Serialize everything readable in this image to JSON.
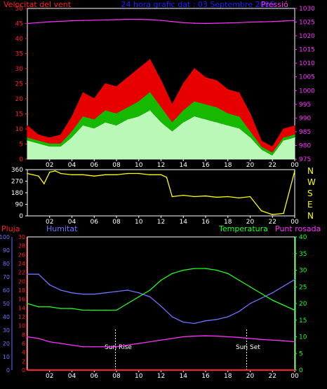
{
  "header": {
    "left_title": "Velocitat del vent",
    "center_title": "24 hora grafic dat : 03 Septembre 2015",
    "right_title": "Pressió",
    "left_color": "#ff2020",
    "center_color": "#2020ff",
    "right_color": "#ff30ff"
  },
  "direction_labels": [
    "N",
    "W",
    "S",
    "E",
    "N"
  ],
  "lower_header": {
    "rain_label": "Pluja",
    "humidity_label": "Humitat",
    "temp_label": "Temperatura",
    "dew_label": "Punt rosada",
    "rain_color": "#ff2020",
    "humidity_color": "#7070ff",
    "temp_color": "#20ff20",
    "dew_color": "#ff30ff"
  },
  "annotations": {
    "sunrise": "Sun Rise",
    "sunset": "Sun Set"
  },
  "chart_data": [
    {
      "type": "line",
      "name": "wind-speed-pressure",
      "x_ticks": [
        "02",
        "04",
        "06",
        "08",
        "10",
        "12",
        "14",
        "16",
        "18",
        "20",
        "22",
        "00"
      ],
      "left_axis": {
        "ylim": [
          0,
          50
        ],
        "ticks": [
          0,
          5,
          10,
          15,
          20,
          25,
          30,
          35,
          40,
          45,
          50
        ],
        "color": "#ff2020"
      },
      "right_axis": {
        "ylim": [
          975,
          1030
        ],
        "ticks": [
          975,
          980,
          985,
          990,
          995,
          1000,
          1005,
          1010,
          1015,
          1020,
          1025,
          1030
        ],
        "color": "#ff30ff"
      },
      "x": [
        0,
        1,
        2,
        3,
        4,
        5,
        6,
        7,
        8,
        9,
        10,
        11,
        12,
        13,
        14,
        15,
        16,
        17,
        18,
        19,
        20,
        21,
        22,
        23,
        24
      ],
      "series": [
        {
          "name": "gust",
          "color": "#ff0000",
          "values": [
            11,
            8,
            7,
            8,
            14,
            22,
            20,
            25,
            24,
            27,
            30,
            33,
            26,
            18,
            25,
            30,
            27,
            26,
            23,
            22,
            15,
            6,
            4,
            10,
            11
          ]
        },
        {
          "name": "average",
          "color": "#00cc00",
          "values": [
            7,
            6,
            5,
            5,
            9,
            14,
            13,
            16,
            15,
            17,
            19,
            22,
            17,
            12,
            16,
            19,
            18,
            17,
            15,
            14,
            9,
            4,
            2,
            7,
            8
          ]
        },
        {
          "name": "wind",
          "color": "#ccffcc",
          "values": [
            6,
            5,
            4,
            4,
            7,
            11,
            10,
            12,
            11,
            13,
            14,
            16,
            12,
            9,
            12,
            14,
            13,
            12,
            11,
            10,
            7,
            3,
            1,
            6,
            7
          ]
        },
        {
          "name": "pressure",
          "color": "#ff30ff",
          "axis": "right",
          "values": [
            1024.5,
            1024.8,
            1025.1,
            1025.3,
            1025.5,
            1025.6,
            1025.7,
            1025.8,
            1025.9,
            1026.0,
            1026.0,
            1025.9,
            1025.6,
            1025.2,
            1024.8,
            1024.6,
            1024.5,
            1024.6,
            1024.7,
            1024.8,
            1025.0,
            1025.1,
            1025.2,
            1025.4,
            1025.6
          ]
        }
      ]
    },
    {
      "type": "line",
      "name": "wind-direction",
      "x_ticks": [
        "02",
        "04",
        "06",
        "08",
        "10",
        "12",
        "14",
        "16",
        "18",
        "20",
        "22",
        "00"
      ],
      "left_axis": {
        "ylim": [
          0,
          360
        ],
        "ticks": [
          0,
          90,
          180,
          270,
          360
        ],
        "color": "#ffffff"
      },
      "x": [
        0,
        0.5,
        1,
        1.5,
        2,
        2.5,
        3,
        4,
        5,
        6,
        7,
        8,
        9,
        10,
        11,
        12,
        12.5,
        13,
        14,
        15,
        16,
        17,
        18,
        19,
        20,
        21,
        22,
        23,
        24
      ],
      "series": [
        {
          "name": "direction",
          "color": "#ffff00",
          "values": [
            330,
            320,
            310,
            250,
            340,
            350,
            330,
            320,
            320,
            310,
            320,
            320,
            330,
            330,
            320,
            320,
            300,
            150,
            160,
            150,
            155,
            145,
            150,
            140,
            150,
            40,
            10,
            20,
            350
          ]
        }
      ]
    },
    {
      "type": "line",
      "name": "humidity-temperature",
      "x_ticks": [
        "02",
        "04",
        "06",
        "08",
        "10",
        "12",
        "14",
        "16",
        "18",
        "20",
        "22",
        "00"
      ],
      "left_axes": [
        {
          "name": "humidity",
          "ylim": [
            0,
            100
          ],
          "ticks": [
            0,
            10,
            20,
            30,
            40,
            50,
            60,
            70,
            80,
            90,
            100
          ],
          "color": "#7070ff"
        },
        {
          "name": "rain",
          "ylim": [
            0,
            30
          ],
          "ticks": [
            0,
            2,
            4,
            6,
            8,
            10,
            12,
            14,
            16,
            18,
            20,
            22,
            24,
            26,
            28,
            30
          ],
          "color": "#ff2020"
        }
      ],
      "right_axis": {
        "ylim": [
          0,
          40
        ],
        "ticks": [
          0,
          5,
          10,
          15,
          20,
          25,
          30,
          35,
          40
        ],
        "color": "#20ff20"
      },
      "x": [
        0,
        1,
        2,
        3,
        4,
        5,
        6,
        7,
        8,
        9,
        10,
        11,
        12,
        13,
        14,
        15,
        16,
        17,
        18,
        19,
        20,
        21,
        22,
        23,
        24
      ],
      "series": [
        {
          "name": "humidity",
          "color": "#7070ff",
          "values": [
            72,
            72,
            64,
            60,
            58,
            57,
            57,
            58,
            59,
            60,
            58,
            55,
            48,
            40,
            36,
            35,
            37,
            38,
            40,
            44,
            50,
            54,
            58,
            63,
            68
          ]
        },
        {
          "name": "temperature",
          "color": "#20ff20",
          "axis": "right",
          "values": [
            20,
            19,
            19,
            18.5,
            18.5,
            18,
            18,
            18,
            18,
            20,
            22,
            24,
            27,
            29,
            30,
            30.5,
            30.5,
            30,
            29,
            27,
            25,
            23,
            21,
            19.5,
            18
          ]
        },
        {
          "name": "dew point",
          "color": "#ff30ff",
          "values": [
            10,
            9.5,
            8.5,
            8,
            7.5,
            7,
            7,
            7,
            7,
            7.5,
            8,
            8.5,
            9,
            9.5,
            10,
            10.2,
            10.3,
            10.2,
            10,
            9.8,
            9.5,
            9.2,
            9,
            8.8,
            8.5
          ]
        },
        {
          "name": "rain",
          "color": "#ff2020",
          "values": [
            0,
            0,
            0,
            0,
            0,
            0,
            0,
            0,
            0,
            0,
            0,
            0,
            0,
            0,
            0,
            0,
            0,
            0,
            0,
            0,
            0,
            0,
            0,
            0,
            0
          ]
        }
      ]
    }
  ]
}
